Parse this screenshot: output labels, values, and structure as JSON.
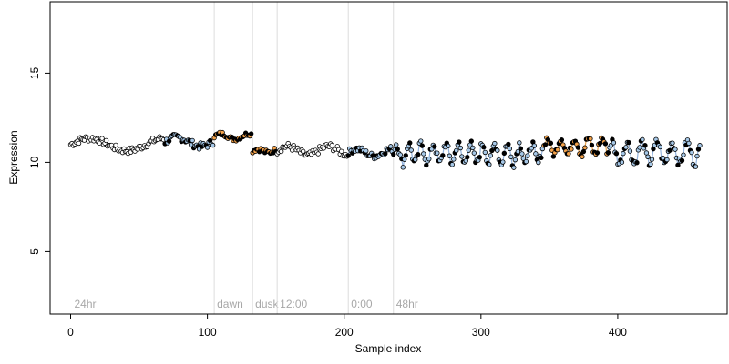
{
  "chart_data": {
    "type": "scatter",
    "title": "",
    "xlabel": "Sample index",
    "ylabel": "Expression",
    "xlim": [
      -15,
      480
    ],
    "ylim": [
      1.5,
      19
    ],
    "xticks": [
      0,
      100,
      200,
      300,
      400
    ],
    "xtick_labels": [
      "0",
      "100",
      "200",
      "300",
      "400"
    ],
    "yticks": [
      5,
      10,
      15
    ],
    "ytick_labels": [
      "5",
      "10",
      "15"
    ],
    "grid": false,
    "legend": "none",
    "colors": {
      "point_fill_default": "#000000",
      "point_fill_light_blue": "#a6c8e8",
      "point_fill_orange": "#f2a14a",
      "point_edge": "#000000",
      "line_blue": "#7fa6d8",
      "line_orange": "#e8952f",
      "region_line": "#dcdcdc",
      "region_label": "#a8a8a8"
    },
    "regions": [
      {
        "label": "24hr",
        "start": 0
      },
      {
        "label": "dawn",
        "start": 105
      },
      {
        "label": "dusk",
        "start": 133
      },
      {
        "label": "12:00",
        "start": 151
      },
      {
        "label": "0:00",
        "start": 203
      },
      {
        "label": "48hr",
        "start": 236
      }
    ],
    "segments": [
      {
        "x0": 0,
        "x1": 68,
        "base": 11.0,
        "amp": 0.35,
        "period": 55,
        "jitter": 0.18,
        "style": "default"
      },
      {
        "x0": 69,
        "x1": 104,
        "base": 11.15,
        "amp": 0.25,
        "period": 35,
        "jitter": 0.2,
        "style": "light_blue"
      },
      {
        "x0": 105,
        "x1": 132,
        "base": 11.45,
        "amp": 0.15,
        "period": 20,
        "jitter": 0.12,
        "style": "orange"
      },
      {
        "x0": 133,
        "x1": 150,
        "base": 10.65,
        "amp": 0.1,
        "period": 15,
        "jitter": 0.14,
        "style": "orange"
      },
      {
        "x0": 151,
        "x1": 202,
        "base": 10.65,
        "amp": 0.25,
        "period": 30,
        "jitter": 0.2,
        "style": "default"
      },
      {
        "x0": 203,
        "x1": 235,
        "base": 10.55,
        "amp": 0.2,
        "period": 25,
        "jitter": 0.18,
        "style": "light_blue"
      },
      {
        "x0": 236,
        "x1": 345,
        "base": 10.5,
        "amp": 0.55,
        "period": 9,
        "jitter": 0.25,
        "style": "light_blue"
      },
      {
        "x0": 346,
        "x1": 392,
        "base": 10.9,
        "amp": 0.45,
        "period": 10,
        "jitter": 0.2,
        "style": "orange"
      },
      {
        "x0": 393,
        "x1": 460,
        "base": 10.55,
        "amp": 0.6,
        "period": 11,
        "jitter": 0.25,
        "style": "light_blue"
      }
    ]
  }
}
